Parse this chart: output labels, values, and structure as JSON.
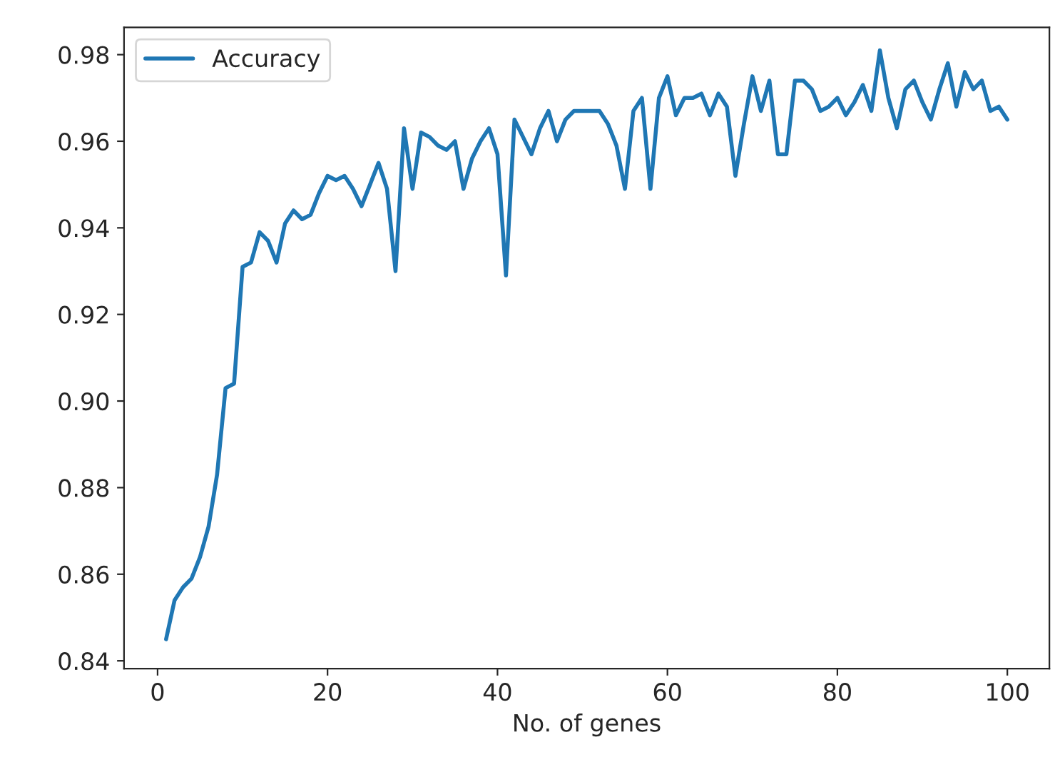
{
  "chart_data": {
    "type": "line",
    "xlabel": "No. of genes",
    "x": [
      1,
      2,
      3,
      4,
      5,
      6,
      7,
      8,
      9,
      10,
      11,
      12,
      13,
      14,
      15,
      16,
      17,
      18,
      19,
      20,
      21,
      22,
      23,
      24,
      25,
      26,
      27,
      28,
      29,
      30,
      31,
      32,
      33,
      34,
      35,
      36,
      37,
      38,
      39,
      40,
      41,
      42,
      43,
      44,
      45,
      46,
      47,
      48,
      49,
      50,
      51,
      52,
      53,
      54,
      55,
      56,
      57,
      58,
      59,
      60,
      61,
      62,
      63,
      64,
      65,
      66,
      67,
      68,
      69,
      70,
      71,
      72,
      73,
      74,
      75,
      76,
      77,
      78,
      79,
      80,
      81,
      82,
      83,
      84,
      85,
      86,
      87,
      88,
      89,
      90,
      91,
      92,
      93,
      94,
      95,
      96,
      97,
      98,
      99,
      100
    ],
    "series": [
      {
        "name": "Accuracy",
        "color": "#1f77b4",
        "values": [
          0.845,
          0.854,
          0.857,
          0.859,
          0.864,
          0.871,
          0.883,
          0.903,
          0.904,
          0.931,
          0.932,
          0.939,
          0.937,
          0.932,
          0.941,
          0.944,
          0.942,
          0.943,
          0.948,
          0.952,
          0.951,
          0.952,
          0.949,
          0.945,
          0.95,
          0.955,
          0.949,
          0.93,
          0.963,
          0.949,
          0.962,
          0.961,
          0.959,
          0.958,
          0.96,
          0.949,
          0.956,
          0.96,
          0.963,
          0.957,
          0.929,
          0.965,
          0.961,
          0.957,
          0.963,
          0.967,
          0.96,
          0.965,
          0.967,
          0.967,
          0.967,
          0.967,
          0.964,
          0.959,
          0.949,
          0.967,
          0.97,
          0.949,
          0.97,
          0.975,
          0.966,
          0.97,
          0.97,
          0.971,
          0.966,
          0.971,
          0.968,
          0.952,
          0.964,
          0.975,
          0.967,
          0.974,
          0.957,
          0.957,
          0.974,
          0.974,
          0.972,
          0.967,
          0.968,
          0.97,
          0.966,
          0.969,
          0.973,
          0.967,
          0.981,
          0.97,
          0.963,
          0.972,
          0.974,
          0.969,
          0.965,
          0.972,
          0.978,
          0.968,
          0.976,
          0.972,
          0.974,
          0.967,
          0.968,
          0.965
        ]
      }
    ],
    "xlim": [
      -3.95,
      104.95
    ],
    "xticks": [
      0,
      20,
      40,
      60,
      80,
      100
    ],
    "ylim": [
      0.8382,
      0.9863
    ],
    "yticks": [
      {
        "value": 0.84,
        "label": "0.84"
      },
      {
        "value": 0.86,
        "label": "0.86"
      },
      {
        "value": 0.88,
        "label": "0.88"
      },
      {
        "value": 0.9,
        "label": "0.90"
      },
      {
        "value": 0.92,
        "label": "0.92"
      },
      {
        "value": 0.94,
        "label": "0.94"
      },
      {
        "value": 0.96,
        "label": "0.96"
      },
      {
        "value": 0.98,
        "label": "0.98"
      }
    ],
    "legend": "top left",
    "grid": false
  }
}
